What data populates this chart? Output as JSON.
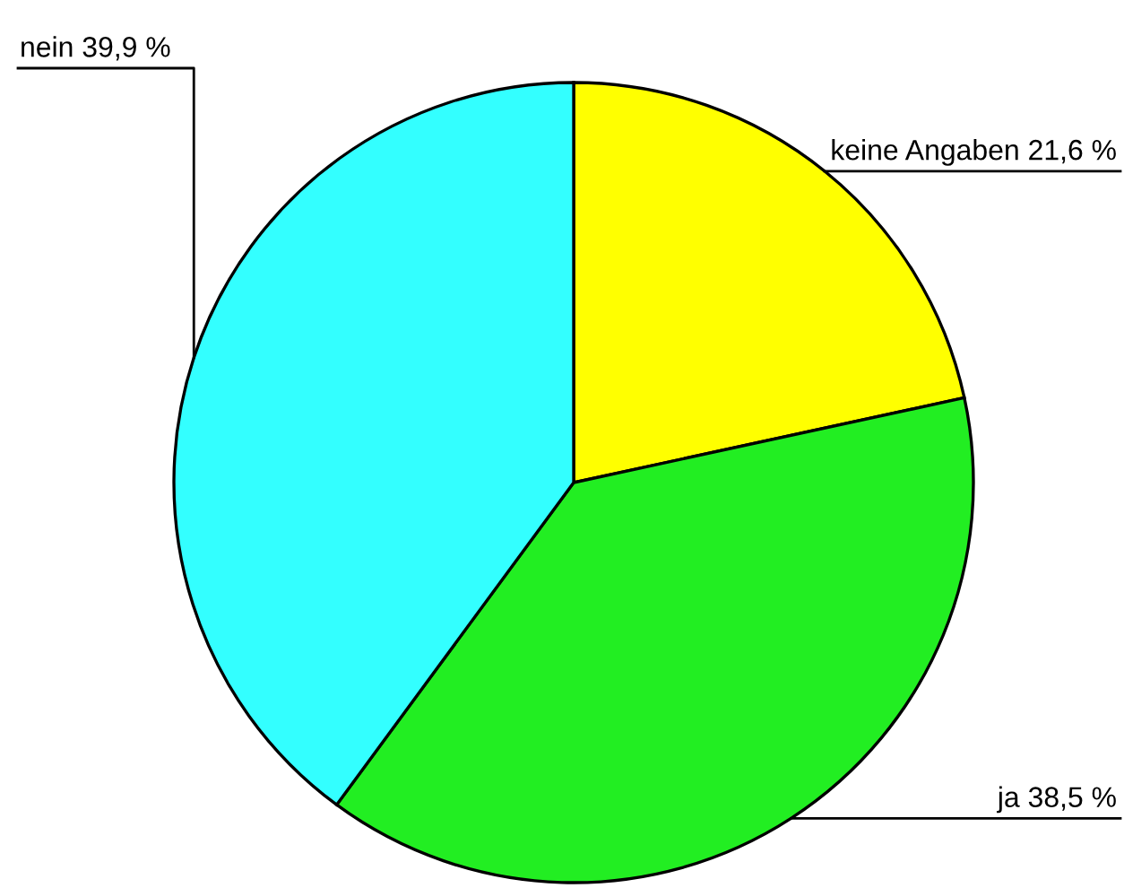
{
  "chart_data": {
    "type": "pie",
    "categories": [
      "keine Angaben",
      "ja",
      "nein"
    ],
    "values": [
      21.6,
      38.5,
      39.9
    ],
    "value_labels": [
      "21,6 %",
      "38,5 %",
      "39,9 %"
    ],
    "colors": [
      "#ffff00",
      "#22ee22",
      "#33ffff"
    ],
    "legend": false
  }
}
